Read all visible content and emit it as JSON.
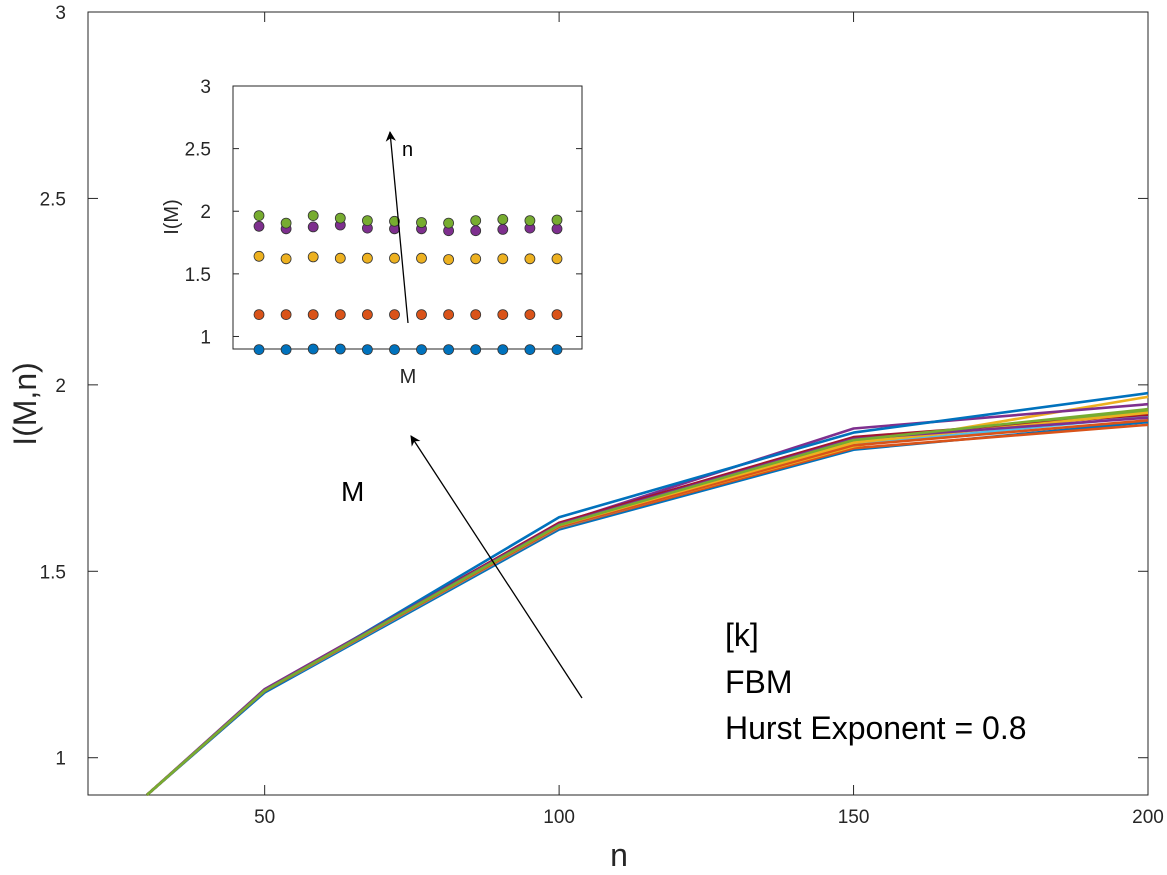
{
  "chart_data": [
    {
      "type": "line",
      "title": "",
      "xlabel": "n",
      "ylabel": "I(M,n)",
      "xlim": [
        20,
        200
      ],
      "ylim": [
        0.9,
        3
      ],
      "xticks": [
        50,
        100,
        150,
        200
      ],
      "yticks": [
        1,
        1.5,
        2,
        2.5,
        3
      ],
      "grid": false,
      "legend": "none",
      "x": [
        30,
        50,
        100,
        150,
        200
      ],
      "series": [
        {
          "color": "#0072BD",
          "values": [
            0.9,
            1.175,
            1.612,
            1.826,
            1.9
          ]
        },
        {
          "color": "#D95319",
          "values": [
            0.9,
            1.178,
            1.617,
            1.83,
            1.893
          ]
        },
        {
          "color": "#EDB120",
          "values": [
            0.9,
            1.18,
            1.62,
            1.835,
            1.968
          ]
        },
        {
          "color": "#7E2F8E",
          "values": [
            0.9,
            1.184,
            1.628,
            1.883,
            1.948
          ]
        },
        {
          "color": "#77AC30",
          "values": [
            0.9,
            1.18,
            1.622,
            1.848,
            1.93
          ]
        },
        {
          "color": "#4DBEEE",
          "values": [
            0.9,
            1.178,
            1.618,
            1.84,
            1.915
          ]
        },
        {
          "color": "#A2142F",
          "values": [
            0.9,
            1.182,
            1.63,
            1.86,
            1.92
          ]
        },
        {
          "color": "#0072BD",
          "values": [
            0.9,
            1.176,
            1.645,
            1.872,
            1.978
          ]
        },
        {
          "color": "#D95319",
          "values": [
            0.9,
            1.179,
            1.619,
            1.838,
            1.905
          ]
        },
        {
          "color": "#EDB120",
          "values": [
            0.9,
            1.181,
            1.623,
            1.845,
            1.925
          ]
        },
        {
          "color": "#7E2F8E",
          "values": [
            0.9,
            1.183,
            1.626,
            1.855,
            1.912
          ]
        },
        {
          "color": "#77AC30",
          "values": [
            0.9,
            1.18,
            1.624,
            1.852,
            1.935
          ]
        }
      ],
      "annotations": {
        "arrow_label": "M",
        "text_lines": [
          "[k]",
          "FBM",
          "Hurst Exponent = 0.8"
        ]
      }
    },
    {
      "type": "scatter",
      "title": "",
      "xlabel": "M",
      "ylabel": "I(M)",
      "ylim": [
        0.9,
        3
      ],
      "yticks": [
        1,
        1.5,
        2,
        2.5,
        3
      ],
      "x": [
        1,
        2,
        3,
        4,
        5,
        6,
        7,
        8,
        9,
        10,
        11,
        12
      ],
      "series": [
        {
          "color": "#0072BD",
          "values": [
            0.895,
            0.895,
            0.9,
            0.9,
            0.895,
            0.895,
            0.895,
            0.895,
            0.895,
            0.895,
            0.895,
            0.895
          ]
        },
        {
          "color": "#D95319",
          "values": [
            1.175,
            1.175,
            1.175,
            1.175,
            1.175,
            1.175,
            1.175,
            1.175,
            1.175,
            1.175,
            1.175,
            1.175
          ]
        },
        {
          "color": "#EDB120",
          "values": [
            1.64,
            1.62,
            1.635,
            1.625,
            1.625,
            1.625,
            1.625,
            1.615,
            1.62,
            1.62,
            1.62,
            1.62
          ]
        },
        {
          "color": "#7E2F8E",
          "values": [
            1.88,
            1.86,
            1.875,
            1.89,
            1.865,
            1.86,
            1.86,
            1.845,
            1.845,
            1.855,
            1.865,
            1.86
          ]
        },
        {
          "color": "#77AC30",
          "values": [
            1.965,
            1.905,
            1.965,
            1.945,
            1.925,
            1.92,
            1.91,
            1.905,
            1.925,
            1.935,
            1.925,
            1.93
          ]
        }
      ],
      "annotations": {
        "arrow_label": "n"
      }
    }
  ]
}
